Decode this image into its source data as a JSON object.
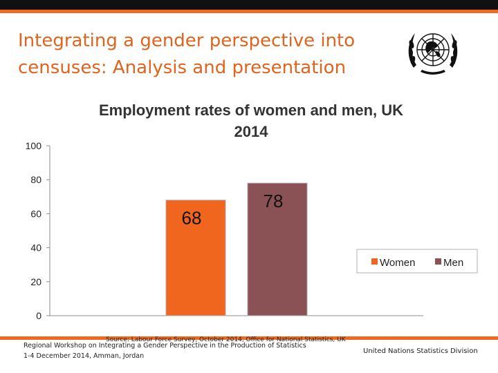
{
  "slide": {
    "title_line1": "Integrating a gender perspective into",
    "title_line2": "censuses: Analysis and presentation",
    "logo_icon": "un-emblem-icon"
  },
  "footer": {
    "source": "Source: Labour Force Survey, October 2014, Office for National Statistics, UK",
    "workshop_line1": "Regional Workshop on Integrating a Gender Perspective in the Production of Statistics",
    "workshop_line2": "1-4 December 2014, Amman, Jordan",
    "org": "United Nations Statistics Division"
  },
  "colors": {
    "accent": "#f06a1e",
    "title": "#e0641e",
    "women": "#f0661e",
    "men": "#8b5255"
  },
  "chart_data": {
    "type": "bar",
    "title_line1": "Employment rates of women and men,  UK",
    "title_line2": "2014",
    "categories": [
      "Women",
      "Men"
    ],
    "values": [
      68,
      78
    ],
    "data_labels": [
      "68",
      "78"
    ],
    "ylim": [
      0,
      100
    ],
    "yticks": [
      0,
      20,
      40,
      60,
      80,
      100
    ],
    "ytick_labels": [
      "0",
      "20",
      "40",
      "60",
      "80",
      "100"
    ],
    "legend": {
      "position": "right",
      "entries": [
        "Women",
        "Men"
      ]
    },
    "grid": false
  }
}
